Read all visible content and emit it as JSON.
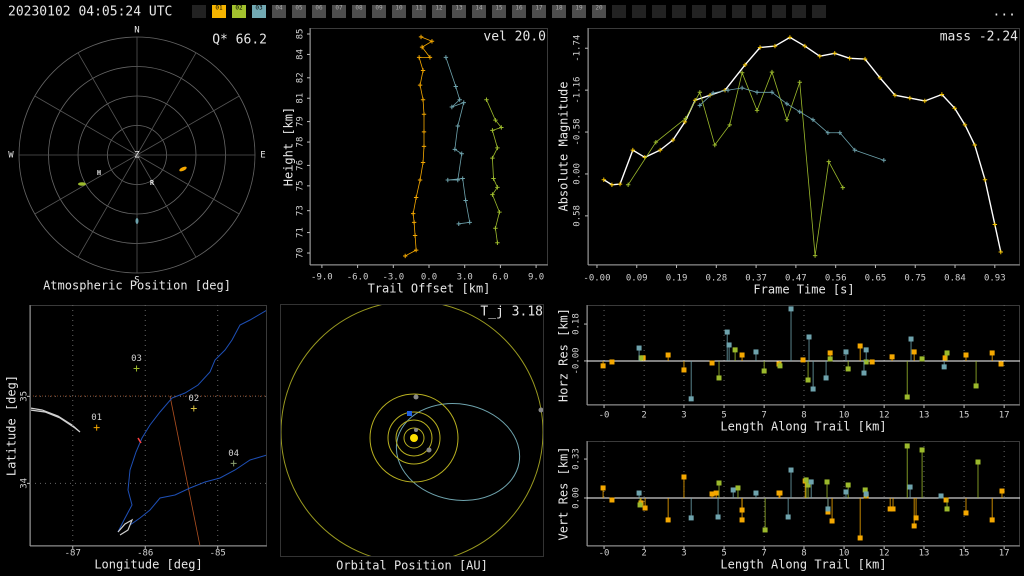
{
  "header": {
    "timestamp": "20230102 04:05:24 UTC",
    "stations": [
      "01",
      "02",
      "03",
      "04",
      "05",
      "06",
      "07",
      "08",
      "09",
      "10",
      "11",
      "12",
      "13",
      "14",
      "15",
      "16",
      "17",
      "18",
      "19",
      "20"
    ],
    "station_colors": [
      "#f5b400",
      "#a3c12e",
      "#72a9b3",
      "#4d4d4d",
      "#4d4d4d",
      "#4d4d4d",
      "#4d4d4d",
      "#4d4d4d",
      "#4d4d4d",
      "#4d4d4d",
      "#4d4d4d",
      "#4d4d4d",
      "#4d4d4d",
      "#4d4d4d",
      "#4d4d4d",
      "#4d4d4d",
      "#4d4d4d",
      "#4d4d4d",
      "#4d4d4d",
      "#4d4d4d"
    ],
    "menu": "..."
  },
  "atmospheric": {
    "title": "Atmospheric Position [deg]",
    "readout": "Q* 66.2",
    "directions": [
      "N",
      "E",
      "S",
      "W",
      "Z"
    ],
    "station_labels": [
      "H",
      "R"
    ]
  },
  "orbital": {
    "title": "Orbital Position [AU]",
    "readout": "T_j 3.18"
  },
  "chart_data": [
    {
      "type": "line",
      "title": "vel 20.0",
      "xlabel": "Trail Offset [km]",
      "ylabel": "Height [km]",
      "xlim": [
        -10,
        10
      ],
      "ylim": [
        69.18,
        85.41
      ],
      "xticks": [
        {
          "value": -9,
          "label": "-9.0"
        },
        {
          "value": -6,
          "label": "-6.0"
        },
        {
          "value": -3,
          "label": "-3.0"
        },
        {
          "value": 0,
          "label": "0.0"
        },
        {
          "value": 3,
          "label": "3.0"
        },
        {
          "value": 6,
          "label": "6.0"
        },
        {
          "value": 9,
          "label": "9.0"
        }
      ],
      "yticks": [
        70,
        {
          "value": 71.4,
          "label": "71"
        },
        {
          "value": 72.9,
          "label": "73"
        },
        {
          "value": 74.6,
          "label": "75"
        },
        76,
        {
          "value": 77.6,
          "label": "78"
        },
        79,
        {
          "value": 80.6,
          "label": "81"
        },
        82,
        {
          "value": 83.6,
          "label": "84"
        },
        85
      ],
      "grid": false,
      "series": [
        {
          "color": "#f5a800",
          "x": [
            -2.0,
            -1.08,
            -1.17,
            -1.25,
            -1.33,
            -1.08,
            -0.75,
            -0.5,
            -0.42,
            -0.42,
            -0.42,
            -0.5,
            -0.75,
            -0.5,
            -0.83,
            0.08,
            -0.58,
            0.25,
            -0.67
          ],
          "values": [
            69.8,
            70.2,
            71.2,
            72.1,
            72.7,
            73.8,
            75.0,
            76.2,
            77.3,
            78.3,
            79.5,
            80.5,
            81.5,
            82.5,
            83.4,
            83.4,
            84.1,
            84.5,
            84.8
          ]
        },
        {
          "color": "#6ea3ad",
          "x": [
            2.5,
            3.42,
            3.08,
            2.83,
            1.58,
            2.42,
            2.75,
            2.17,
            2.42,
            2.92,
            1.92,
            2.58,
            2.25,
            1.42
          ],
          "values": [
            72.0,
            72.1,
            73.6,
            75.1,
            75.0,
            75.0,
            76.8,
            77.1,
            78.7,
            80.3,
            80.0,
            80.5,
            81.4,
            83.4
          ]
        },
        {
          "color": "#9cba2c",
          "x": [
            5.75,
            5.58,
            5.92,
            5.33,
            5.75,
            5.42,
            5.33,
            5.75,
            5.33,
            6.08,
            5.58,
            4.83
          ],
          "values": [
            70.7,
            71.7,
            72.8,
            74.0,
            74.5,
            75.1,
            76.5,
            77.2,
            78.4,
            78.6,
            79.1,
            80.5
          ]
        }
      ]
    },
    {
      "type": "line",
      "title": "mass -2.24",
      "xlabel": "Frame Time [s]",
      "ylabel": "Absolute Magnitude",
      "xlim": [
        -0.021,
        0.991
      ],
      "ylim": [
        1.26,
        -2.02
      ],
      "xticks": [
        {
          "value": 0,
          "label": "-0.00"
        },
        {
          "value": 0.0932,
          "label": "0.09"
        },
        {
          "value": 0.1864,
          "label": "0.19"
        },
        {
          "value": 0.2796,
          "label": "0.28"
        },
        {
          "value": 0.3728,
          "label": "0.37"
        },
        {
          "value": 0.466,
          "label": "0.47"
        },
        {
          "value": 0.5592,
          "label": "0.56"
        },
        {
          "value": 0.6524,
          "label": "0.65"
        },
        {
          "value": 0.7456,
          "label": "0.75"
        },
        {
          "value": 0.8388,
          "label": "0.84"
        },
        {
          "value": 0.932,
          "label": "0.93"
        }
      ],
      "yticks": [
        -1.74,
        -1.16,
        -0.58,
        {
          "value": 0,
          "label": "0.00"
        },
        0.58
      ],
      "grid": false,
      "series": [
        {
          "color": "#f5c400",
          "line_color": "#ffffff",
          "x": [
            0.016,
            0.035,
            0.054,
            0.084,
            0.112,
            0.148,
            0.178,
            0.206,
            0.23,
            0.265,
            0.3,
            0.347,
            0.382,
            0.417,
            0.452,
            0.487,
            0.522,
            0.557,
            0.592,
            0.628,
            0.663,
            0.698,
            0.733,
            0.768,
            0.808,
            0.838,
            0.862,
            0.885,
            0.909,
            0.932,
            0.946
          ],
          "values": [
            0.08,
            0.15,
            0.14,
            -0.33,
            -0.23,
            -0.33,
            -0.47,
            -0.72,
            -1.02,
            -1.09,
            -1.16,
            -1.51,
            -1.75,
            -1.77,
            -1.89,
            -1.77,
            -1.63,
            -1.67,
            -1.6,
            -1.59,
            -1.33,
            -1.09,
            -1.05,
            -1.01,
            -1.1,
            -0.91,
            -0.68,
            -0.4,
            0.08,
            0.7,
            1.08
          ]
        },
        {
          "color": "#9cba2c",
          "x": [
            0.073,
            0.138,
            0.208,
            0.241,
            0.276,
            0.311,
            0.34,
            0.375,
            0.41,
            0.445,
            0.475,
            0.511,
            0.543,
            0.576
          ],
          "values": [
            0.15,
            -0.44,
            -0.77,
            -1.13,
            -0.4,
            -0.68,
            -1.4,
            -0.88,
            -1.41,
            -0.75,
            -1.27,
            1.13,
            -0.17,
            0.19
          ]
        },
        {
          "color": "#6ea3ad",
          "x": [
            0.241,
            0.272,
            0.307,
            0.34,
            0.375,
            0.41,
            0.445,
            0.475,
            0.506,
            0.541,
            0.569,
            0.604,
            0.672
          ],
          "values": [
            -0.95,
            -1.12,
            -1.16,
            -1.19,
            -1.13,
            -1.13,
            -0.97,
            -0.86,
            -0.75,
            -0.57,
            -0.57,
            -0.33,
            -0.19
          ]
        }
      ]
    },
    {
      "type": "scatter",
      "xlabel": "Longitude [deg]",
      "ylabel": "Latitude [deg]",
      "xlim": [
        -87.59,
        -84.32
      ],
      "ylim": [
        33.28,
        36.05
      ],
      "xticks": [
        -87,
        -86,
        -85
      ],
      "yticks": [
        34,
        35
      ],
      "grid": true,
      "series": [
        {
          "name": "01",
          "color": "#f5a800",
          "x": [
            -86.67
          ],
          "values": [
            34.64
          ]
        },
        {
          "name": "02",
          "color": "#d8c040",
          "x": [
            -85.33
          ],
          "values": [
            34.86
          ]
        },
        {
          "name": "03",
          "color": "#9cba2c",
          "x": [
            -86.12
          ],
          "values": [
            35.32
          ]
        },
        {
          "name": "04",
          "color": "#8aa070",
          "x": [
            -84.78
          ],
          "values": [
            34.23
          ]
        }
      ]
    },
    {
      "type": "stem",
      "xlabel": "Length Along Trail [km]",
      "ylabel": "Horz Res [km]",
      "xlim": [
        -0.71,
        17.33
      ],
      "ylim": [
        -0.215,
        0.273
      ],
      "xticks": [
        {
          "value": 0,
          "label": "-0"
        },
        {
          "value": 1.67,
          "label": "2"
        },
        {
          "value": 3.33,
          "label": "3"
        },
        5,
        {
          "value": 6.67,
          "label": "7"
        },
        {
          "value": 8.33,
          "label": "8"
        },
        10,
        {
          "value": 11.67,
          "label": "12"
        },
        {
          "value": 13.33,
          "label": "13"
        },
        15,
        {
          "value": 16.67,
          "label": "17"
        }
      ],
      "yticks": [
        {
          "value": 0,
          "label": "-0.00"
        },
        0.18
      ],
      "grid": true,
      "series": [
        {
          "color": "#f5a800",
          "x": [
            -0.04,
            0.33,
            1.63,
            2.67,
            3.33,
            4.5,
            5.75,
            7.29,
            8.29,
            9.42,
            10.67,
            11.17,
            12.0,
            12.92,
            14.21,
            15.08,
            16.17,
            16.54
          ],
          "values": [
            -0.024,
            -0.005,
            0.015,
            0.029,
            -0.044,
            -0.01,
            0.029,
            -0.015,
            0.005,
            0.039,
            0.073,
            -0.005,
            0.02,
            0.044,
            0.015,
            0.029,
            0.039,
            -0.015
          ]
        },
        {
          "color": "#9cba2c",
          "x": [
            1.54,
            4.79,
            5.46,
            6.67,
            7.33,
            8.5,
            9.42,
            10.17,
            10.92,
            12.63,
            13.25,
            14.29,
            15.5
          ],
          "values": [
            0.015,
            -0.083,
            0.054,
            -0.049,
            -0.024,
            -0.093,
            0.01,
            -0.039,
            -0.005,
            -0.176,
            0.01,
            0.039,
            -0.122
          ]
        },
        {
          "color": "#6ea3ad",
          "x": [
            1.46,
            3.63,
            5.13,
            5.21,
            6.33,
            7.79,
            8.54,
            8.71,
            9.25,
            10.08,
            10.83,
            10.92,
            12.79,
            14.17
          ],
          "values": [
            0.063,
            -0.185,
            0.141,
            0.078,
            0.044,
            0.254,
            0.117,
            -0.137,
            -0.083,
            0.044,
            -0.059,
            0.054,
            0.107,
            -0.029
          ]
        }
      ]
    },
    {
      "type": "stem",
      "xlabel": "Length Along Trail [km]",
      "ylabel": "Vert Res [km]",
      "xlim": [
        -0.71,
        17.33
      ],
      "ylim": [
        -0.407,
        0.483
      ],
      "xticks": [
        {
          "value": 0,
          "label": "-0"
        },
        {
          "value": 1.67,
          "label": "2"
        },
        {
          "value": 3.33,
          "label": "3"
        },
        5,
        {
          "value": 6.67,
          "label": "7"
        },
        {
          "value": 8.33,
          "label": "8"
        },
        10,
        {
          "value": 11.67,
          "label": "12"
        },
        {
          "value": 13.33,
          "label": "13"
        },
        15,
        {
          "value": 16.67,
          "label": "17"
        }
      ],
      "yticks": [
        {
          "value": 0,
          "label": "0.00"
        },
        0.33
      ],
      "grid": true,
      "series": [
        {
          "color": "#f5a800",
          "x": [
            -0.04,
            0.33,
            1.54,
            1.71,
            2.67,
            3.33,
            4.5,
            4.67,
            5.75,
            5.75,
            7.29,
            7.33,
            8.38,
            9.33,
            9.5,
            10.67,
            10.92,
            11.92,
            12.04,
            12.92,
            13.0,
            14.25,
            15.08,
            16.17,
            16.58
          ],
          "values": [
            0.085,
            -0.017,
            -0.042,
            -0.085,
            -0.186,
            0.178,
            0.034,
            0.042,
            -0.102,
            -0.186,
            0.042,
            0.042,
            0.144,
            -0.119,
            -0.195,
            -0.339,
            0.017,
            -0.093,
            -0.093,
            -0.237,
            -0.169,
            -0.017,
            -0.127,
            -0.186,
            0.059
          ]
        },
        {
          "color": "#9cba2c",
          "x": [
            1.5,
            4.79,
            5.58,
            6.71,
            8.42,
            8.5,
            9.29,
            10.17,
            10.88,
            12.63,
            13.25,
            14.29,
            15.58
          ],
          "values": [
            -0.059,
            0.127,
            0.085,
            -0.271,
            0.153,
            0.11,
            0.136,
            0.11,
            0.068,
            0.441,
            0.407,
            -0.093,
            0.305
          ]
        },
        {
          "color": "#6ea3ad",
          "x": [
            1.46,
            3.63,
            4.75,
            5.38,
            6.33,
            7.79,
            7.67,
            8.63,
            9.33,
            10.08,
            10.92,
            12.75,
            14.04
          ],
          "values": [
            0.042,
            -0.169,
            -0.161,
            0.068,
            0.042,
            0.237,
            -0.161,
            0.136,
            -0.093,
            0.051,
            0.034,
            0.093,
            0.017
          ]
        }
      ]
    }
  ]
}
